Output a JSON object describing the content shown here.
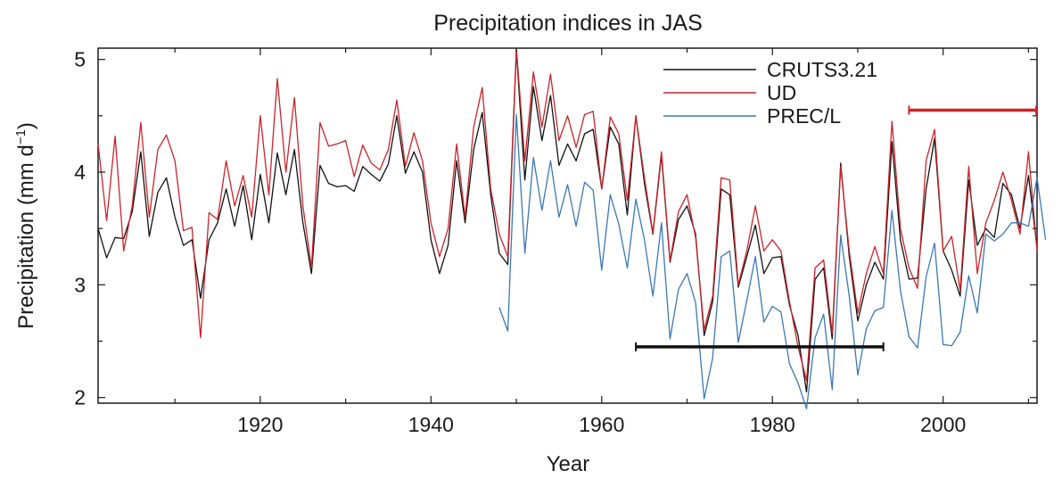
{
  "chart_data": {
    "type": "line",
    "title": "Precipitation indices in JAS",
    "xlabel": "Year",
    "ylabel": "Precipitation (mm d",
    "ylabel_sup": "−1",
    "ylabel_close": ")",
    "xlim": [
      1901,
      2011
    ],
    "ylim": [
      1.95,
      5.1
    ],
    "xticks": [
      1920,
      1940,
      1960,
      1980,
      2000
    ],
    "yticks": [
      2,
      3,
      4,
      5
    ],
    "grid": false,
    "legend_position": "top-right",
    "series": [
      {
        "name": "CRUTS3.21",
        "color": "#111111",
        "start_year": 1901,
        "values": [
          3.5,
          3.24,
          3.42,
          3.41,
          3.65,
          4.18,
          3.43,
          3.82,
          3.95,
          3.6,
          3.35,
          3.4,
          2.88,
          3.4,
          3.55,
          3.85,
          3.52,
          3.88,
          3.4,
          3.98,
          3.55,
          4.17,
          3.8,
          4.2,
          3.55,
          3.1,
          4.06,
          3.9,
          3.87,
          3.88,
          3.83,
          4.05,
          3.98,
          3.92,
          4.07,
          4.5,
          3.99,
          4.18,
          4.0,
          3.4,
          3.1,
          3.35,
          4.1,
          3.55,
          4.2,
          4.53,
          3.8,
          3.28,
          3.18,
          5.08,
          3.93,
          4.76,
          4.28,
          4.68,
          4.06,
          4.25,
          4.1,
          4.34,
          4.38,
          3.85,
          4.4,
          4.25,
          3.62,
          4.5,
          3.9,
          3.45,
          4.15,
          3.2,
          3.58,
          3.7,
          3.45,
          2.55,
          2.85,
          3.85,
          3.8,
          2.98,
          3.25,
          3.53,
          3.1,
          3.24,
          3.25,
          2.82,
          2.55,
          2.05,
          3.05,
          3.15,
          2.52,
          4.08,
          3.25,
          2.68,
          3.0,
          3.2,
          3.05,
          4.27,
          3.4,
          3.05,
          3.06,
          3.85,
          4.3,
          3.3,
          3.13,
          2.9,
          3.93,
          3.35,
          3.5,
          3.42,
          3.9,
          3.8,
          3.5,
          3.97,
          3.33
        ]
      },
      {
        "name": "UD",
        "color": "#cc2229",
        "start_year": 1901,
        "values": [
          4.25,
          3.57,
          4.32,
          3.3,
          3.7,
          4.44,
          3.6,
          4.2,
          4.33,
          4.1,
          3.48,
          3.51,
          2.53,
          3.64,
          3.58,
          4.1,
          3.7,
          3.97,
          3.6,
          4.5,
          3.8,
          4.83,
          4.0,
          4.66,
          3.7,
          3.15,
          4.44,
          4.23,
          4.25,
          4.28,
          3.96,
          4.24,
          4.08,
          4.02,
          4.2,
          4.64,
          4.05,
          4.35,
          4.1,
          3.55,
          3.25,
          3.5,
          4.25,
          3.6,
          4.4,
          4.75,
          3.85,
          3.45,
          3.25,
          5.1,
          4.1,
          4.89,
          4.4,
          4.87,
          4.28,
          4.5,
          4.22,
          4.51,
          4.54,
          3.85,
          4.49,
          4.34,
          3.75,
          4.5,
          3.95,
          3.46,
          4.18,
          3.21,
          3.65,
          3.8,
          3.42,
          2.6,
          2.9,
          3.95,
          3.93,
          3.0,
          3.3,
          3.7,
          3.3,
          3.4,
          3.3,
          2.85,
          2.45,
          2.15,
          3.15,
          3.22,
          2.57,
          4.05,
          3.3,
          2.75,
          3.1,
          3.34,
          3.1,
          4.45,
          3.5,
          3.15,
          2.97,
          4.1,
          4.38,
          3.3,
          3.43,
          2.95,
          4.05,
          3.1,
          3.55,
          3.75,
          4.0,
          3.75,
          3.45,
          4.18,
          3.3
        ]
      },
      {
        "name": "PREC/L",
        "color": "#3a78b5",
        "start_year": 1948,
        "values": [
          2.8,
          2.59,
          4.51,
          3.28,
          4.13,
          3.66,
          4.1,
          3.6,
          3.89,
          3.52,
          3.91,
          3.84,
          3.13,
          3.8,
          3.54,
          3.15,
          3.76,
          3.4,
          2.9,
          3.55,
          2.52,
          2.96,
          3.1,
          2.84,
          1.99,
          2.35,
          3.25,
          3.3,
          2.49,
          2.86,
          3.25,
          2.67,
          2.81,
          2.76,
          2.3,
          2.13,
          1.9,
          2.53,
          2.74,
          2.07,
          3.44,
          2.9,
          2.2,
          2.61,
          2.77,
          2.8,
          3.66,
          2.95,
          2.54,
          2.44,
          3.07,
          3.37,
          2.47,
          2.46,
          2.58,
          3.08,
          2.75,
          3.45,
          3.39,
          3.45,
          3.55,
          3.55,
          3.52,
          3.95,
          3.4
        ]
      }
    ],
    "periods": [
      {
        "start": 1964,
        "end": 1993,
        "y": 2.45,
        "color": "#111111"
      },
      {
        "start": 1996,
        "end": 2011,
        "y": 4.55,
        "color": "#cc2229"
      }
    ]
  }
}
